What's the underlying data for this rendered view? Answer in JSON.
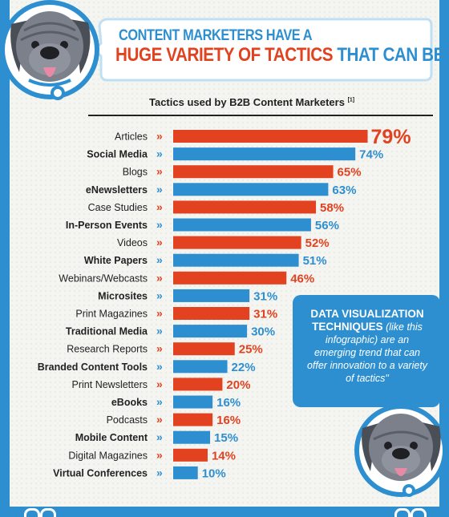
{
  "header": {
    "title_line1": "CONTENT MARKETERS HAVE A",
    "title_line2_highlight": "HUGE VARIETY OF TACTICS",
    "title_line2_rest": " THAT CAN BE UTILIZED"
  },
  "callout": {
    "bold": "DATA VISUALIZATION TECHNIQUES",
    "body": " (like this infographic) are an emerging trend that can offer innovation to a variety of tactics\""
  },
  "colors": {
    "orange": "#e2421f",
    "blue": "#2d8fd0",
    "background": "#f4f4f1"
  },
  "icons": [
    "dog-mascot-icon",
    "double-chevron-icon"
  ],
  "chart_data": {
    "type": "bar",
    "orientation": "horizontal",
    "title": "Tactics used by B2B Content Marketers",
    "title_note": "[1]",
    "categories": [
      "Articles",
      "Social Media",
      "Blogs",
      "eNewsletters",
      "Case Studies",
      "In-Person Events",
      "Videos",
      "White Papers",
      "Webinars/Webcasts",
      "Microsites",
      "Print Magazines",
      "Traditional Media",
      "Research Reports",
      "Branded Content Tools",
      "Print Newsletters",
      "eBooks",
      "Podcasts",
      "Mobile Content",
      "Digital Magazines",
      "Virtual Conferences"
    ],
    "values": [
      79,
      74,
      65,
      63,
      58,
      56,
      52,
      51,
      46,
      31,
      31,
      30,
      25,
      22,
      20,
      16,
      16,
      15,
      14,
      10
    ],
    "value_labels": [
      "79%",
      "74%",
      "65%",
      "63%",
      "58%",
      "56%",
      "52%",
      "51%",
      "46%",
      "31%",
      "31%",
      "30%",
      "25%",
      "22%",
      "20%",
      "16%",
      "16%",
      "15%",
      "14%",
      "10%"
    ],
    "bar_colors": [
      "orange",
      "blue",
      "orange",
      "blue",
      "orange",
      "blue",
      "orange",
      "blue",
      "orange",
      "blue",
      "orange",
      "blue",
      "orange",
      "blue",
      "orange",
      "blue",
      "orange",
      "blue",
      "orange",
      "blue"
    ],
    "marker": "»",
    "xlabel": "",
    "ylabel": "",
    "grid": false,
    "legend": "none"
  }
}
